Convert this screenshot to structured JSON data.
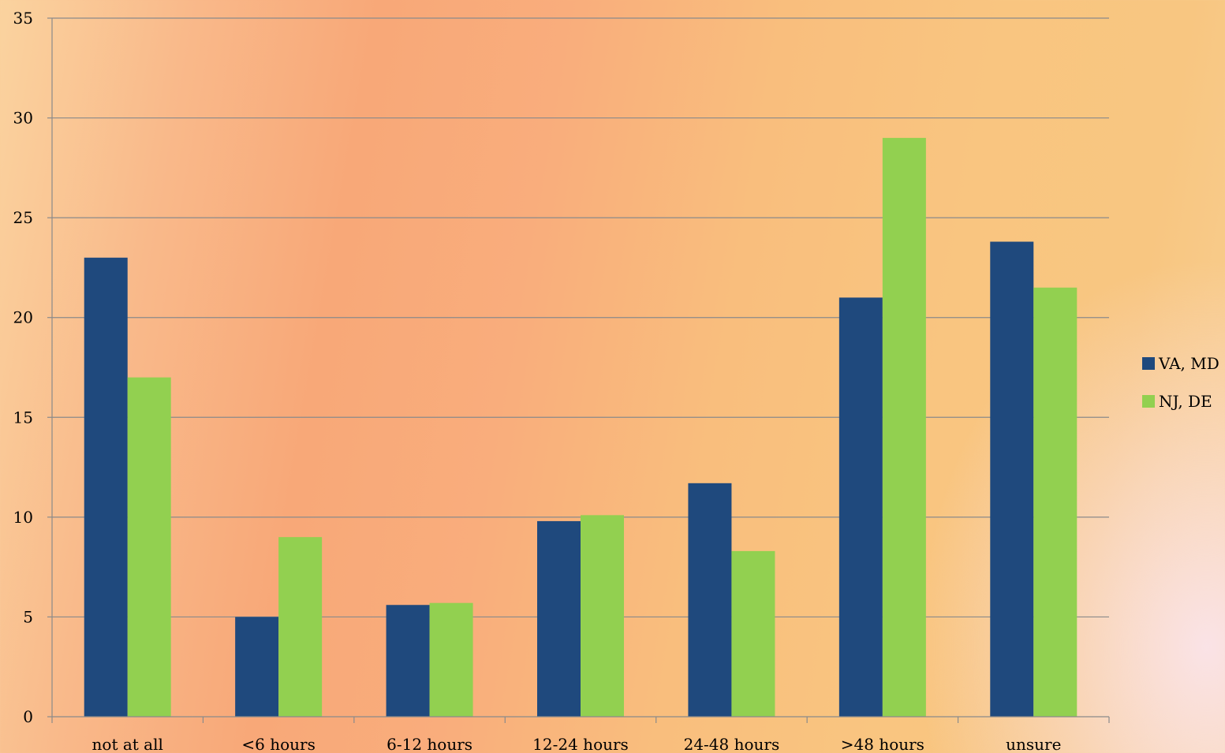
{
  "chart_data": {
    "type": "bar",
    "title": "",
    "xlabel": "",
    "ylabel": "",
    "categories": [
      "not at all",
      "<6 hours",
      "6-12 hours",
      "12-24 hours",
      "24-48 hours",
      ">48 hours",
      "unsure"
    ],
    "series": [
      {
        "name": "VA, MD",
        "color": "#1f497d",
        "values": [
          23.0,
          5.0,
          5.6,
          9.8,
          11.7,
          21.0,
          23.8
        ]
      },
      {
        "name": "NJ, DE",
        "color": "#92d050",
        "values": [
          17.0,
          9.0,
          5.7,
          10.1,
          8.3,
          29.0,
          21.5
        ]
      }
    ],
    "ylim": [
      0,
      35
    ],
    "yticks": [
      0,
      5,
      10,
      15,
      20,
      25,
      30,
      35
    ],
    "ytick_labels": [
      "0",
      "5",
      "10",
      "15",
      "20",
      "25",
      "30",
      "35"
    ],
    "grid": true,
    "gridline_color": "#8a8a8a",
    "legend": {
      "position": "right",
      "items": [
        "VA, MD",
        "NJ, DE"
      ]
    }
  }
}
